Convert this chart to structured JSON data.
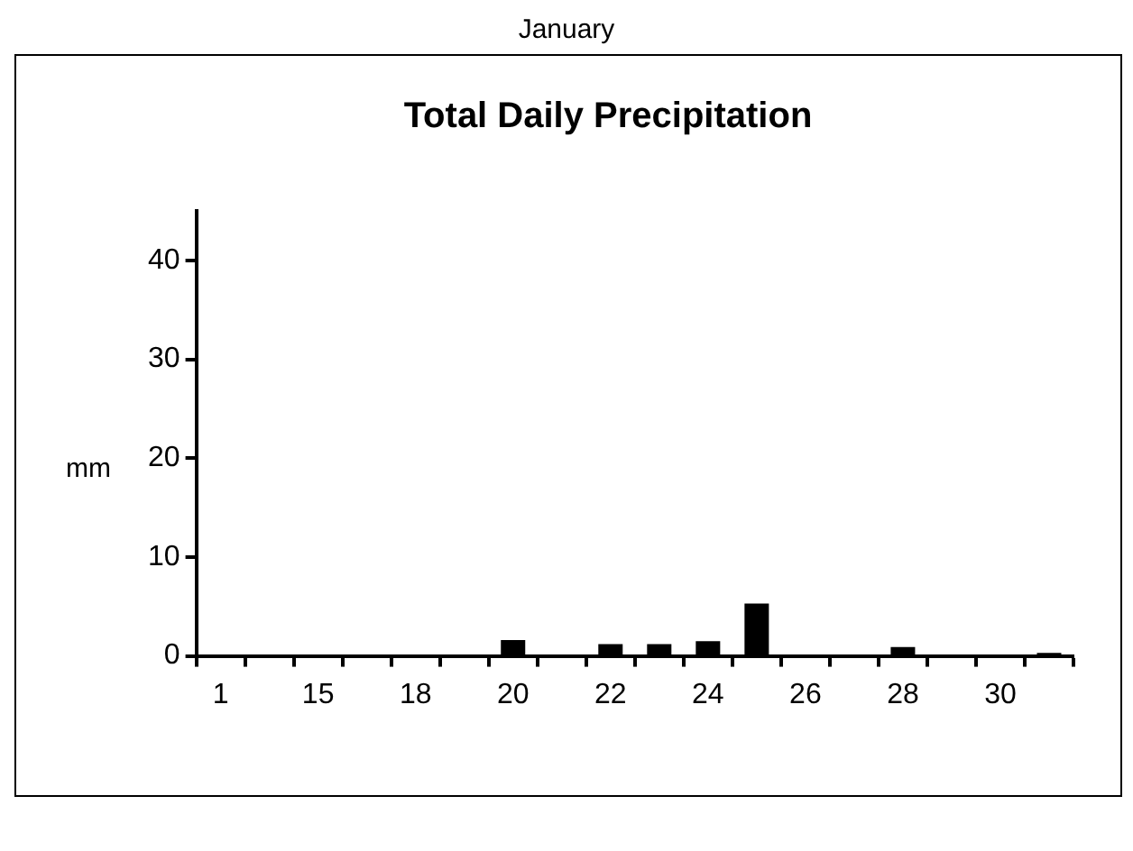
{
  "chart_data": {
    "type": "bar",
    "subtitle": "January",
    "title": "Total Daily Precipitation",
    "ylabel": "mm",
    "categories": [
      "1",
      null,
      "15",
      null,
      "18",
      null,
      "20",
      null,
      "22",
      null,
      "24",
      null,
      "26",
      null,
      "28",
      null,
      "30",
      null
    ],
    "values": [
      0,
      0,
      0,
      0,
      0,
      0,
      1.6,
      0,
      1.2,
      1.2,
      1.5,
      5.3,
      0,
      0,
      0.9,
      0,
      0,
      0.3
    ],
    "color": "#000000",
    "ylim": [
      0,
      45
    ],
    "yticks": [
      0,
      10,
      20,
      30,
      40
    ],
    "grid": false,
    "legend": false
  }
}
